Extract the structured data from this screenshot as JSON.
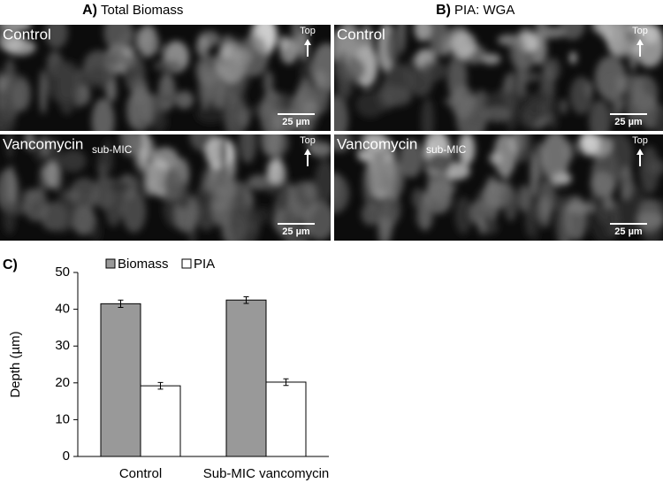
{
  "panels": [
    {
      "letter": "A)",
      "title": "Total Biomass",
      "tiles": [
        {
          "label": "Control",
          "arrow": "Top",
          "scale": "25 µm"
        },
        {
          "label": "Vancomycin",
          "sublabel": "sub-MIC",
          "arrow": "Top",
          "scale": "25 µm"
        }
      ]
    },
    {
      "letter": "B)",
      "title": "PIA: WGA",
      "tiles": [
        {
          "label": "Control",
          "arrow": "Top",
          "scale": "25 µm"
        },
        {
          "label": "Vancomycin",
          "sublabel": "sub-MIC",
          "arrow": "Top",
          "scale": "25 µm"
        }
      ]
    }
  ],
  "chart_data": {
    "type": "bar",
    "letter": "C)",
    "ylabel": "Depth (µm)",
    "categories": [
      "Control",
      "Sub-MIC vancomycin"
    ],
    "series": [
      {
        "name": "Biomass",
        "color": "#999999",
        "values": [
          41.5,
          42.5
        ],
        "errors": [
          1.0,
          0.9
        ]
      },
      {
        "name": "PIA",
        "color": "#ffffff",
        "values": [
          19.2,
          20.2
        ],
        "errors": [
          0.9,
          0.9
        ]
      }
    ],
    "ylim": [
      0,
      50
    ],
    "yticks": [
      0,
      10,
      20,
      30,
      40,
      50
    ],
    "grid": false,
    "legend": "top"
  }
}
